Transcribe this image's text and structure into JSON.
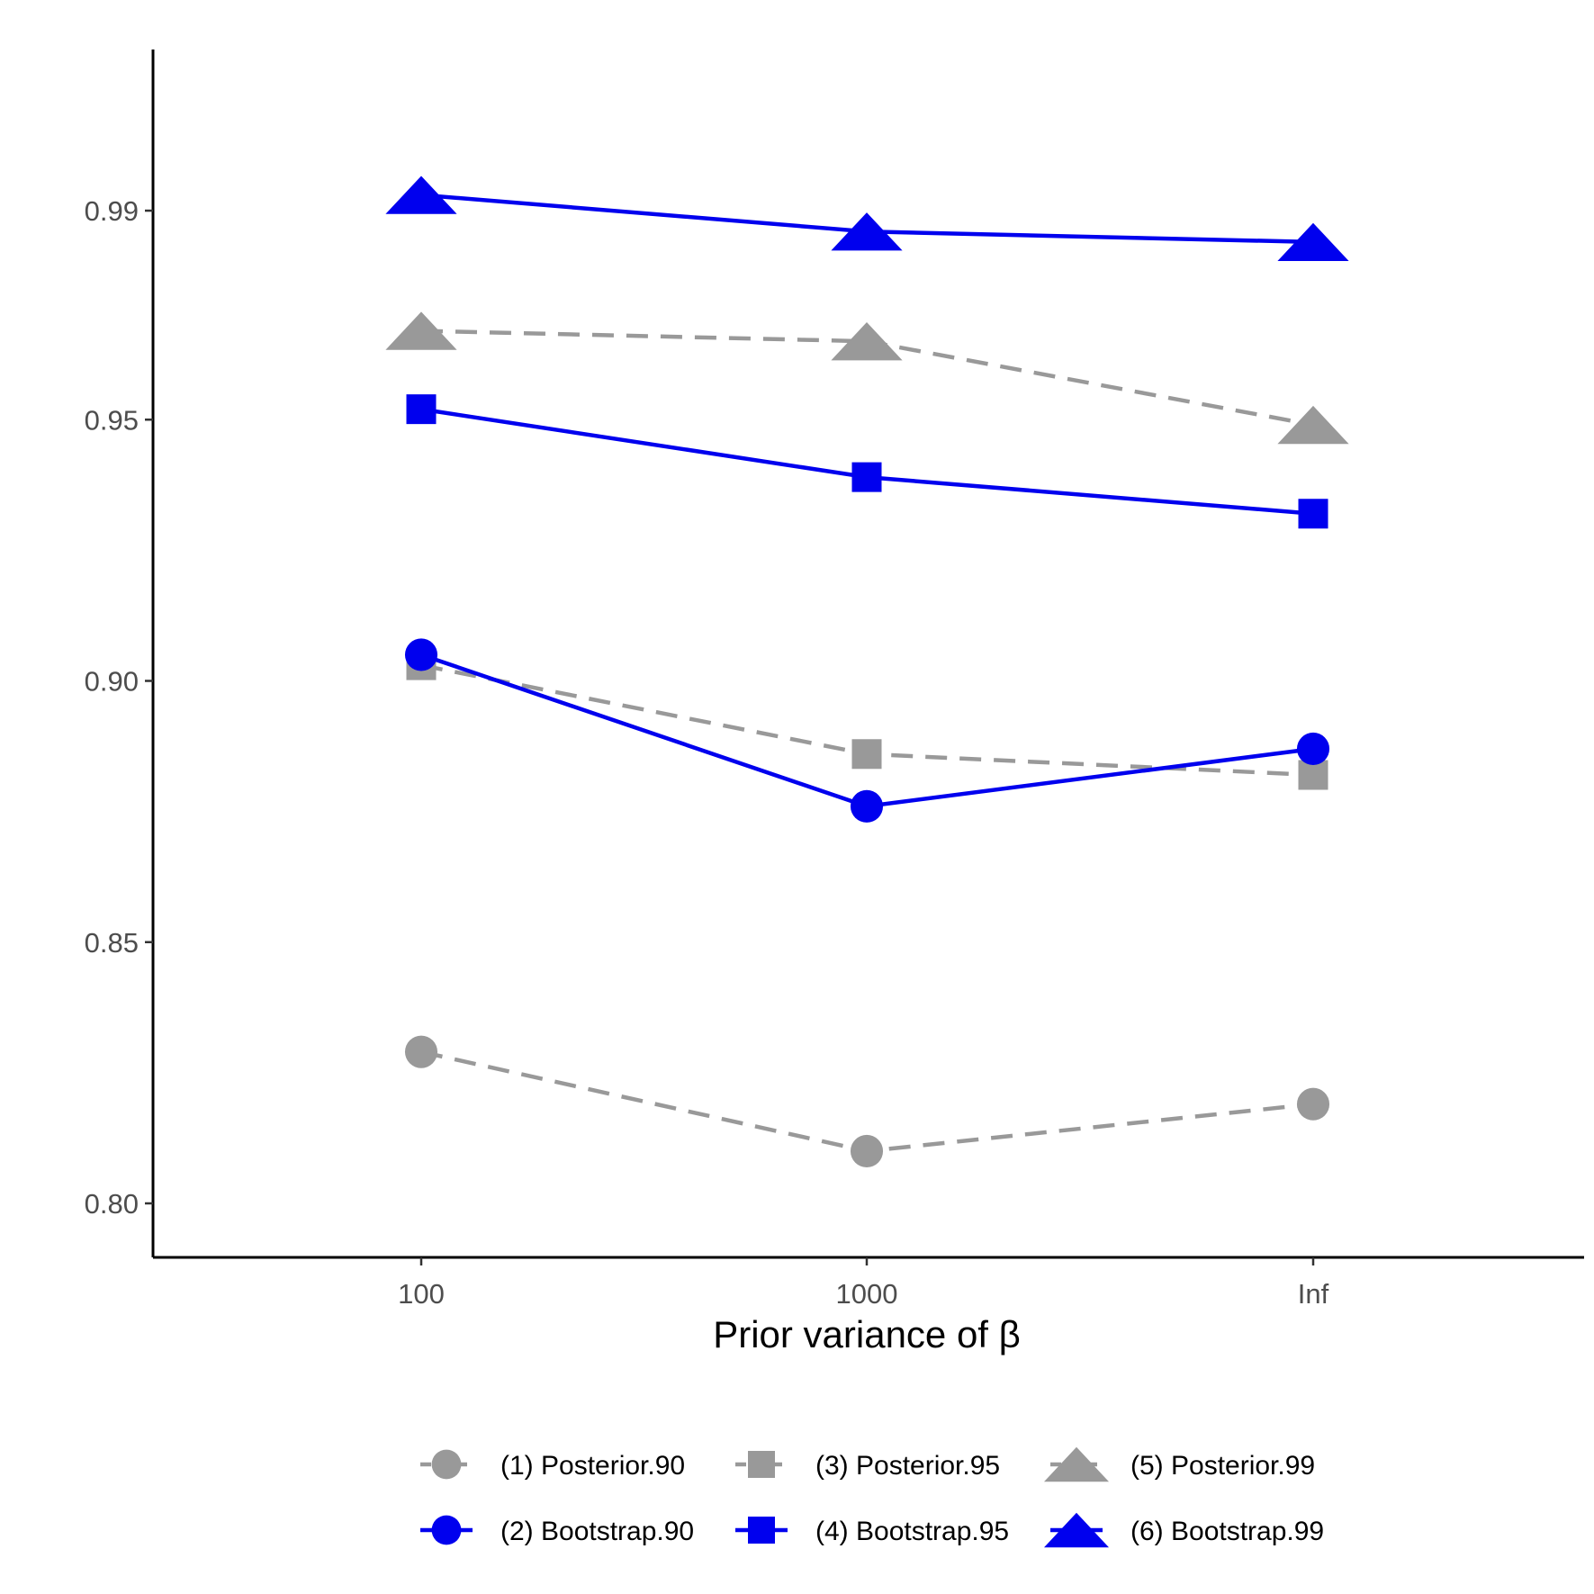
{
  "chart_data": {
    "type": "line",
    "title": "",
    "xlabel": "Prior variance of β",
    "ylabel": "",
    "categories": [
      "100",
      "1000",
      "Inf"
    ],
    "ylim": [
      0.79,
      1.013
    ],
    "yticks": [
      0.8,
      0.85,
      0.9,
      0.95,
      0.99
    ],
    "ytick_labels": [
      "0.80",
      "0.85",
      "0.90",
      "0.95",
      "0.99"
    ],
    "grid": false,
    "legend_position": "bottom",
    "series": [
      {
        "name": "(1) Posterior.90",
        "values": [
          0.829,
          0.81,
          0.819
        ],
        "color": "#999999",
        "linetype": "dashed",
        "shape": "circle"
      },
      {
        "name": "(2) Bootstrap.90",
        "values": [
          0.905,
          0.876,
          0.887
        ],
        "color": "#0000ee",
        "linetype": "solid",
        "shape": "circle"
      },
      {
        "name": "(3) Posterior.95",
        "values": [
          0.903,
          0.886,
          0.882
        ],
        "color": "#999999",
        "linetype": "dashed",
        "shape": "square"
      },
      {
        "name": "(4) Bootstrap.95",
        "values": [
          0.952,
          0.939,
          0.932
        ],
        "color": "#0000ee",
        "linetype": "solid",
        "shape": "square"
      },
      {
        "name": "(5) Posterior.99",
        "values": [
          0.967,
          0.965,
          0.949
        ],
        "color": "#999999",
        "linetype": "dashed",
        "shape": "triangle"
      },
      {
        "name": "(6) Bootstrap.99",
        "values": [
          0.993,
          0.986,
          0.984
        ],
        "color": "#0000ee",
        "linetype": "solid",
        "shape": "triangle"
      }
    ],
    "legend_order": [
      0,
      2,
      4,
      1,
      3,
      5
    ]
  }
}
